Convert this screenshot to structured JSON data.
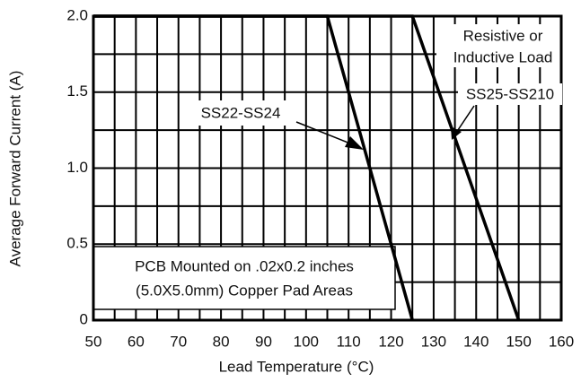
{
  "chart_data": {
    "type": "line",
    "xlabel": "Lead Temperature (°C)",
    "ylabel": "Average Forward Current (A)",
    "series": [
      {
        "name": "SS22-SS24",
        "color": "#000000",
        "x": [
          50,
          105,
          125
        ],
        "values": [
          2.0,
          2.0,
          0
        ]
      },
      {
        "name": "SS25-SS210",
        "color": "#000000",
        "x": [
          50,
          125,
          150
        ],
        "values": [
          2.0,
          2.0,
          0
        ]
      }
    ],
    "xlim": [
      50,
      160
    ],
    "xticks": [
      50,
      60,
      70,
      80,
      90,
      100,
      110,
      120,
      130,
      140,
      150,
      160
    ],
    "ylim": [
      0,
      2.0
    ],
    "yticks": [
      0,
      0.5,
      {
        "value": 1.0,
        "label": "1.0"
      },
      1.5,
      {
        "value": 2.0,
        "label": "2.0"
      }
    ],
    "grid": true,
    "load_note": [
      "Resistive or",
      "Inductive Load"
    ],
    "pcb_note": [
      "PCB Mounted on .02x0.2 inches",
      "(5.0X5.0mm) Copper Pad Areas"
    ]
  }
}
